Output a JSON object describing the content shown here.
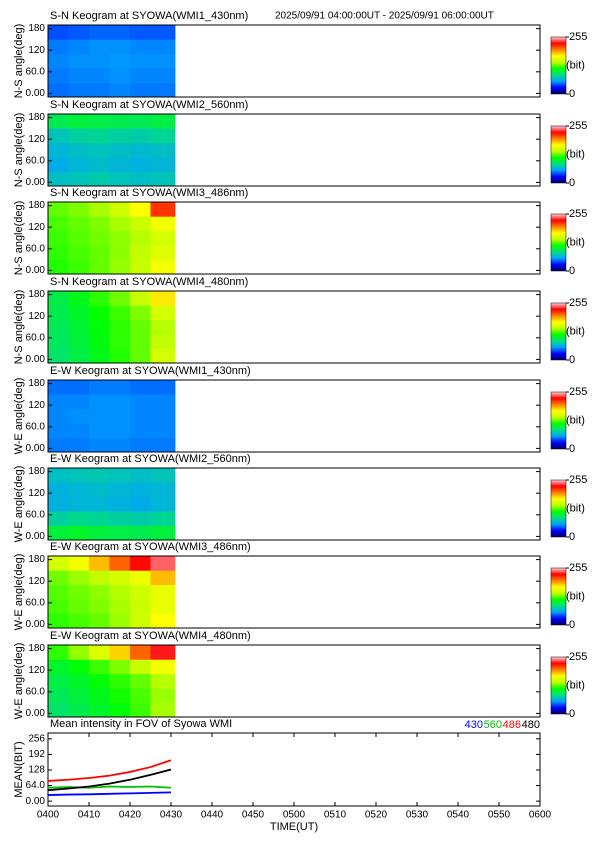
{
  "header": "2025/09/91 04:00:00UT - 2025/09/91 06:00:00UT",
  "chart_data": [
    {
      "type": "heatmap",
      "title": "S-N Keogram at SYOWA(WMI1_430nm)",
      "ylabel": "N-S angle(deg)",
      "xlim": [
        "0400",
        "0600"
      ],
      "ylim": [
        -10,
        190
      ],
      "yticks": [
        {
          "value": 0,
          "label": "0.00"
        },
        {
          "value": 60,
          "label": "60.0"
        },
        120,
        180
      ],
      "x_edges": [
        "0400",
        "0405",
        "0410",
        "0415",
        "0420",
        "0425",
        "0431"
      ],
      "y_edges": [
        -10,
        30,
        70,
        110,
        150,
        190
      ],
      "values": [
        [
          48,
          50,
          50,
          52,
          50,
          50
        ],
        [
          50,
          52,
          52,
          54,
          52,
          52
        ],
        [
          52,
          54,
          54,
          55,
          54,
          54
        ],
        [
          50,
          52,
          54,
          54,
          52,
          52
        ],
        [
          42,
          44,
          46,
          46,
          44,
          44
        ]
      ],
      "zlim": [
        0,
        255
      ],
      "zticks": [
        0,
        255
      ],
      "zlabel": "(bit)",
      "colorscale": [
        "#000060",
        "#0000ff",
        "#00a0ff",
        "#00e080",
        "#00ff00",
        "#c0ff00",
        "#ffff00",
        "#ff8000",
        "#ff0000",
        "#ffd0d8"
      ]
    },
    {
      "type": "heatmap",
      "title": "S-N Keogram at SYOWA(WMI2_560nm)",
      "ylabel": "N-S angle(deg)",
      "xlim": [
        "0400",
        "0600"
      ],
      "ylim": [
        -10,
        190
      ],
      "yticks": [
        {
          "value": 0,
          "label": "0.00"
        },
        {
          "value": 60,
          "label": "60.0"
        },
        120,
        180
      ],
      "x_edges": [
        "0400",
        "0405",
        "0410",
        "0415",
        "0420",
        "0425",
        "0431"
      ],
      "y_edges": [
        -10,
        30,
        70,
        110,
        150,
        190
      ],
      "values": [
        [
          70,
          72,
          75,
          72,
          70,
          72
        ],
        [
          62,
          66,
          68,
          66,
          64,
          66
        ],
        [
          66,
          70,
          72,
          70,
          68,
          70
        ],
        [
          72,
          78,
          80,
          78,
          76,
          80
        ],
        [
          95,
          100,
          98,
          96,
          95,
          98
        ]
      ],
      "zlim": [
        0,
        255
      ],
      "zticks": [
        0,
        255
      ],
      "zlabel": "(bit)",
      "colorscale": [
        "#000060",
        "#0000ff",
        "#00a0ff",
        "#00e080",
        "#00ff00",
        "#c0ff00",
        "#ffff00",
        "#ff8000",
        "#ff0000",
        "#ffd0d8"
      ]
    },
    {
      "type": "heatmap",
      "title": "S-N Keogram at SYOWA(WMI3_486nm)",
      "ylabel": "N-S angle(deg)",
      "xlim": [
        "0400",
        "0600"
      ],
      "ylim": [
        -10,
        190
      ],
      "yticks": [
        {
          "value": 0,
          "label": "0.00"
        },
        {
          "value": 60,
          "label": "60.0"
        },
        120,
        180
      ],
      "x_edges": [
        "0400",
        "0405",
        "0410",
        "0415",
        "0420",
        "0425",
        "0431"
      ],
      "y_edges": [
        -10,
        30,
        70,
        110,
        150,
        190
      ],
      "values": [
        [
          118,
          122,
          128,
          135,
          145,
          165
        ],
        [
          120,
          124,
          128,
          134,
          142,
          155
        ],
        [
          122,
          126,
          130,
          134,
          140,
          150
        ],
        [
          124,
          128,
          132,
          138,
          146,
          165
        ],
        [
          128,
          132,
          138,
          148,
          170,
          215
        ]
      ],
      "zlim": [
        0,
        255
      ],
      "zticks": [
        0,
        255
      ],
      "zlabel": "(bit)",
      "colorscale": [
        "#000060",
        "#0000ff",
        "#00a0ff",
        "#00e080",
        "#00ff00",
        "#c0ff00",
        "#ffff00",
        "#ff8000",
        "#ff0000",
        "#ffd0d8"
      ]
    },
    {
      "type": "heatmap",
      "title": "S-N Keogram at SYOWA(WMI4_480nm)",
      "ylabel": "N-S angle(deg)",
      "xlim": [
        "0400",
        "0600"
      ],
      "ylim": [
        -10,
        190
      ],
      "yticks": [
        {
          "value": 0,
          "label": "0.00"
        },
        {
          "value": 60,
          "label": "60.0"
        },
        120,
        180
      ],
      "x_edges": [
        "0400",
        "0405",
        "0410",
        "0415",
        "0420",
        "0425",
        "0431"
      ],
      "y_edges": [
        -10,
        30,
        70,
        110,
        150,
        190
      ],
      "values": [
        [
          90,
          98,
          108,
          118,
          128,
          150
        ],
        [
          92,
          100,
          110,
          120,
          128,
          142
        ],
        [
          94,
          102,
          112,
          120,
          128,
          140
        ],
        [
          96,
          104,
          114,
          122,
          132,
          150
        ],
        [
          98,
          108,
          120,
          130,
          145,
          175
        ]
      ],
      "zlim": [
        0,
        255
      ],
      "zticks": [
        0,
        255
      ],
      "zlabel": "(bit)",
      "colorscale": [
        "#000060",
        "#0000ff",
        "#00a0ff",
        "#00e080",
        "#00ff00",
        "#c0ff00",
        "#ffff00",
        "#ff8000",
        "#ff0000",
        "#ffd0d8"
      ]
    },
    {
      "type": "heatmap",
      "title": "E-W Keogram at SYOWA(WMI1_430nm)",
      "ylabel": "W-E angle(deg)",
      "xlim": [
        "0400",
        "0600"
      ],
      "ylim": [
        -10,
        190
      ],
      "yticks": [
        {
          "value": 0,
          "label": "0.00"
        },
        {
          "value": 60,
          "label": "60.0"
        },
        120,
        180
      ],
      "x_edges": [
        "0400",
        "0405",
        "0410",
        "0415",
        "0420",
        "0425",
        "0431"
      ],
      "y_edges": [
        -10,
        30,
        70,
        110,
        150,
        190
      ],
      "values": [
        [
          50,
          50,
          52,
          52,
          50,
          50
        ],
        [
          52,
          52,
          54,
          54,
          52,
          52
        ],
        [
          52,
          54,
          54,
          54,
          52,
          52
        ],
        [
          52,
          52,
          54,
          54,
          52,
          52
        ],
        [
          48,
          48,
          50,
          50,
          48,
          48
        ]
      ],
      "zlim": [
        0,
        255
      ],
      "zticks": [
        0,
        255
      ],
      "zlabel": "(bit)",
      "colorscale": [
        "#000060",
        "#0000ff",
        "#00a0ff",
        "#00e080",
        "#00ff00",
        "#c0ff00",
        "#ffff00",
        "#ff8000",
        "#ff0000",
        "#ffd0d8"
      ]
    },
    {
      "type": "heatmap",
      "title": "E-W Keogram at SYOWA(WMI2_560nm)",
      "ylabel": "W-E angle(deg)",
      "xlim": [
        "0400",
        "0600"
      ],
      "ylim": [
        -10,
        190
      ],
      "yticks": [
        {
          "value": 0,
          "label": "0.00"
        },
        {
          "value": 60,
          "label": "60.0"
        },
        120,
        180
      ],
      "x_edges": [
        "0400",
        "0405",
        "0410",
        "0415",
        "0420",
        "0425",
        "0431"
      ],
      "y_edges": [
        -10,
        30,
        70,
        110,
        150,
        190
      ],
      "values": [
        [
          100,
          104,
          100,
          98,
          96,
          100
        ],
        [
          78,
          82,
          80,
          78,
          76,
          80
        ],
        [
          64,
          66,
          66,
          64,
          62,
          66
        ],
        [
          64,
          66,
          68,
          66,
          64,
          66
        ],
        [
          70,
          72,
          74,
          72,
          70,
          72
        ]
      ],
      "zlim": [
        0,
        255
      ],
      "zticks": [
        0,
        255
      ],
      "zlabel": "(bit)",
      "colorscale": [
        "#000060",
        "#0000ff",
        "#00a0ff",
        "#00e080",
        "#00ff00",
        "#c0ff00",
        "#ffff00",
        "#ff8000",
        "#ff0000",
        "#ffd0d8"
      ]
    },
    {
      "type": "heatmap",
      "title": "E-W Keogram at SYOWA(WMI3_486nm)",
      "ylabel": "W-E angle(deg)",
      "xlim": [
        "0400",
        "0600"
      ],
      "ylim": [
        -10,
        190
      ],
      "yticks": [
        {
          "value": 0,
          "label": "0.00"
        },
        {
          "value": 60,
          "label": "60.0"
        },
        120,
        180
      ],
      "x_edges": [
        "0400",
        "0405",
        "0410",
        "0415",
        "0420",
        "0425",
        "0431"
      ],
      "y_edges": [
        -10,
        30,
        70,
        110,
        150,
        190
      ],
      "values": [
        [
          120,
          124,
          128,
          136,
          148,
          170
        ],
        [
          124,
          128,
          132,
          138,
          146,
          160
        ],
        [
          126,
          130,
          134,
          140,
          148,
          160
        ],
        [
          130,
          136,
          142,
          150,
          162,
          185
        ],
        [
          150,
          165,
          185,
          205,
          225,
          240
        ]
      ],
      "zlim": [
        0,
        255
      ],
      "zticks": [
        0,
        255
      ],
      "zlabel": "(bit)",
      "colorscale": [
        "#000060",
        "#0000ff",
        "#00a0ff",
        "#00e080",
        "#00ff00",
        "#c0ff00",
        "#ffff00",
        "#ff8000",
        "#ff0000",
        "#ffd0d8"
      ]
    },
    {
      "type": "heatmap",
      "title": "E-W Keogram at SYOWA(WMI4_480nm)",
      "ylabel": "W-E angle(deg)",
      "xlim": [
        "0400",
        "0600"
      ],
      "ylim": [
        -10,
        190
      ],
      "yticks": [
        {
          "value": 0,
          "label": "0.00"
        },
        {
          "value": 60,
          "label": "60.0"
        },
        120,
        180
      ],
      "x_edges": [
        "0400",
        "0405",
        "0410",
        "0415",
        "0420",
        "0425",
        "0431"
      ],
      "y_edges": [
        -10,
        30,
        70,
        110,
        150,
        190
      ],
      "values": [
        [
          90,
          96,
          104,
          112,
          122,
          138
        ],
        [
          94,
          100,
          108,
          116,
          124,
          136
        ],
        [
          98,
          104,
          112,
          120,
          128,
          140
        ],
        [
          104,
          112,
          122,
          132,
          145,
          165
        ],
        [
          120,
          135,
          155,
          180,
          205,
          230
        ]
      ],
      "zlim": [
        0,
        255
      ],
      "zticks": [
        0,
        255
      ],
      "zlabel": "(bit)",
      "colorscale": [
        "#000060",
        "#0000ff",
        "#00a0ff",
        "#00e080",
        "#00ff00",
        "#c0ff00",
        "#ffff00",
        "#ff8000",
        "#ff0000",
        "#ffd0d8"
      ]
    },
    {
      "type": "line",
      "title": "Mean intensity in FOV of Syowa WMI",
      "ylabel": "MEAN(BIT)",
      "xlabel": "TIME(UT)",
      "xlim": [
        "0400",
        "0600"
      ],
      "xticks": [
        "0400",
        "0410",
        "0420",
        "0430",
        "0440",
        "0450",
        "0500",
        "0510",
        "0520",
        "0530",
        "0540",
        "0550",
        "0600"
      ],
      "ylim": [
        -20,
        280
      ],
      "yticks": [
        {
          "value": 0,
          "label": "0.00"
        },
        {
          "value": 64,
          "label": "64.0"
        },
        128,
        192,
        256
      ],
      "x": [
        "0400",
        "0405",
        "0410",
        "0415",
        "0420",
        "0425",
        "0430"
      ],
      "series": [
        {
          "name": "430",
          "color": "#0000ff",
          "values": [
            25,
            27,
            28,
            30,
            32,
            34,
            36
          ]
        },
        {
          "name": "560",
          "color": "#00c000",
          "values": [
            55,
            58,
            55,
            60,
            58,
            60,
            55
          ]
        },
        {
          "name": "486",
          "color": "#ff0000",
          "values": [
            83,
            88,
            95,
            105,
            120,
            140,
            168
          ]
        },
        {
          "name": "480",
          "color": "#000000",
          "values": [
            45,
            52,
            60,
            72,
            88,
            108,
            130
          ]
        }
      ]
    }
  ]
}
